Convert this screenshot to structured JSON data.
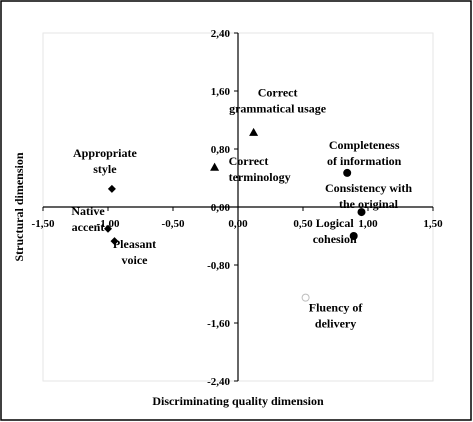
{
  "chart_data": {
    "type": "scatter",
    "title": "",
    "xlabel": "Discriminating quality dimension",
    "ylabel": "Structural dimension",
    "xlim": [
      -1.5,
      1.5
    ],
    "ylim": [
      -2.4,
      2.4
    ],
    "xticks": [
      "-1,50",
      "-1,00",
      "-0,50",
      "0,00",
      "0,50",
      "1,00",
      "1,50"
    ],
    "yticks": [
      "2,40",
      "1,60",
      "0,80",
      "0,00",
      "-0,80",
      "-1,60",
      "-2,40"
    ],
    "grid": false,
    "legend": "none",
    "points": [
      {
        "label": "Correct grammatical usage",
        "lines": [
          "Correct",
          "grammatical usage"
        ],
        "x": 0.12,
        "y": 1.03,
        "marker": "triangle"
      },
      {
        "label": "Correct terminology",
        "lines": [
          "Correct",
          "terminology"
        ],
        "x": -0.18,
        "y": 0.55,
        "marker": "triangle"
      },
      {
        "label": "Appropriate style",
        "lines": [
          "Appropriate",
          "style"
        ],
        "x": -0.97,
        "y": 0.25,
        "marker": "diamond"
      },
      {
        "label": "Native accent",
        "lines": [
          "Native",
          "accent"
        ],
        "x": -1.0,
        "y": -0.3,
        "marker": "diamond"
      },
      {
        "label": "Pleasant voice",
        "lines": [
          "Pleasant",
          "voice"
        ],
        "x": -0.95,
        "y": -0.47,
        "marker": "diamond"
      },
      {
        "label": "Completeness of information",
        "lines": [
          "Completeness",
          "of information"
        ],
        "x": 0.84,
        "y": 0.47,
        "marker": "circle"
      },
      {
        "label": "Consistency with the original",
        "lines": [
          "Consistency with",
          "the original"
        ],
        "x": 0.95,
        "y": -0.07,
        "marker": "circle"
      },
      {
        "label": "Logical cohesion",
        "lines": [
          "Logical",
          "cohesion"
        ],
        "x": 0.89,
        "y": -0.4,
        "marker": "circle"
      },
      {
        "label": "Fluency of delivery",
        "lines": [
          "Fluency of",
          "delivery"
        ],
        "x": 0.52,
        "y": -1.25,
        "marker": "open-circle"
      }
    ]
  }
}
